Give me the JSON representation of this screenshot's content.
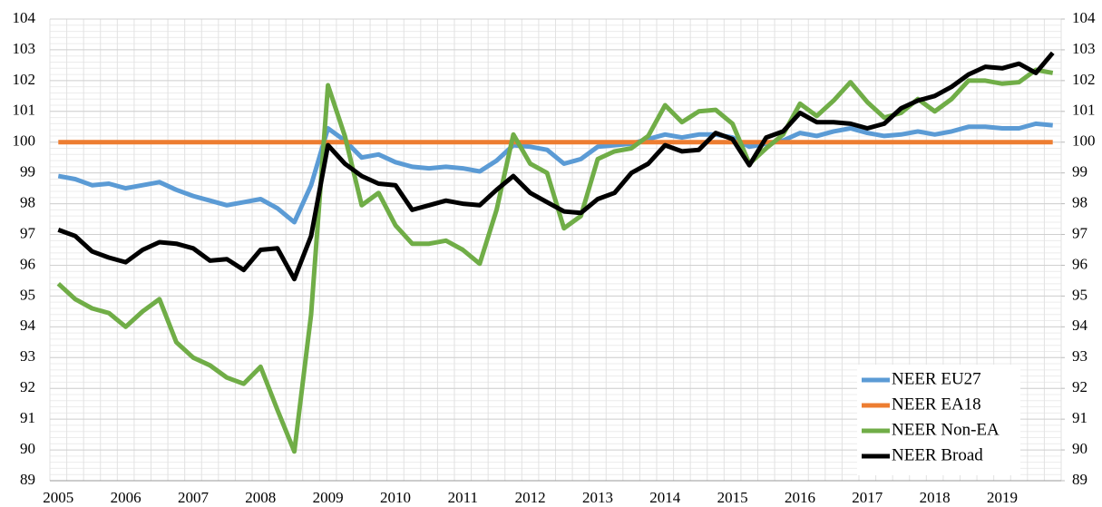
{
  "chart_data": {
    "type": "line",
    "categories": [
      "2005",
      null,
      null,
      null,
      "2006",
      null,
      null,
      null,
      "2007",
      null,
      null,
      null,
      "2008",
      null,
      null,
      null,
      "2009",
      null,
      null,
      null,
      "2010",
      null,
      null,
      null,
      "2011",
      null,
      null,
      null,
      "2012",
      null,
      null,
      null,
      "2013",
      null,
      null,
      null,
      "2014",
      null,
      null,
      null,
      "2015",
      null,
      null,
      null,
      "2016",
      null,
      null,
      null,
      "2017",
      null,
      null,
      null,
      "2018",
      null,
      null,
      null,
      "2019",
      null,
      null,
      null
    ],
    "series": [
      {
        "name": "NEER EU27",
        "color": "#5b9bd5",
        "values": [
          98.9,
          98.8,
          98.6,
          98.65,
          98.5,
          98.6,
          98.7,
          98.45,
          98.25,
          98.1,
          97.95,
          98.05,
          98.15,
          97.85,
          97.4,
          98.6,
          100.45,
          100.05,
          99.5,
          99.6,
          99.35,
          99.2,
          99.15,
          99.2,
          99.15,
          99.05,
          99.4,
          99.9,
          99.85,
          99.75,
          99.3,
          99.45,
          99.85,
          99.9,
          99.95,
          100.1,
          100.25,
          100.15,
          100.25,
          100.25,
          100.15,
          99.85,
          99.95,
          100.05,
          100.3,
          100.2,
          100.35,
          100.45,
          100.3,
          100.2,
          100.25,
          100.35,
          100.25,
          100.35,
          100.5,
          100.5,
          100.45,
          100.45,
          100.6,
          100.55
        ]
      },
      {
        "name": "NEER EA18",
        "color": "#ed7d31",
        "values": [
          100,
          100,
          100,
          100,
          100,
          100,
          100,
          100,
          100,
          100,
          100,
          100,
          100,
          100,
          100,
          100,
          100,
          100,
          100,
          100,
          100,
          100,
          100,
          100,
          100,
          100,
          100,
          100,
          100,
          100,
          100,
          100,
          100,
          100,
          100,
          100,
          100,
          100,
          100,
          100,
          100,
          100,
          100,
          100,
          100,
          100,
          100,
          100,
          100,
          100,
          100,
          100,
          100,
          100,
          100,
          100,
          100,
          100,
          100,
          100
        ]
      },
      {
        "name": "NEER Non-EA",
        "color": "#70ad47",
        "values": [
          95.4,
          94.9,
          94.6,
          94.45,
          94.0,
          94.5,
          94.9,
          93.5,
          93.0,
          92.75,
          92.35,
          92.15,
          92.7,
          91.3,
          89.95,
          94.4,
          101.85,
          100.2,
          97.95,
          98.35,
          97.3,
          96.7,
          96.7,
          96.8,
          96.5,
          96.05,
          97.8,
          100.25,
          99.3,
          99.0,
          97.2,
          97.6,
          99.45,
          99.7,
          99.8,
          100.2,
          101.2,
          100.65,
          101.0,
          101.05,
          100.6,
          99.3,
          99.8,
          100.25,
          101.25,
          100.85,
          101.35,
          101.95,
          101.3,
          100.8,
          100.95,
          101.4,
          101.0,
          101.4,
          102.0,
          102.0,
          101.9,
          101.95,
          102.35,
          102.25
        ]
      },
      {
        "name": "NEER Broad",
        "color": "#000000",
        "values": [
          97.15,
          96.95,
          96.45,
          96.25,
          96.1,
          96.5,
          96.75,
          96.7,
          96.55,
          96.15,
          96.2,
          95.85,
          96.5,
          96.55,
          95.55,
          96.95,
          99.9,
          99.3,
          98.9,
          98.65,
          98.6,
          97.8,
          97.95,
          98.1,
          98.0,
          97.95,
          98.45,
          98.9,
          98.35,
          98.05,
          97.75,
          97.7,
          98.15,
          98.35,
          99.0,
          99.3,
          99.9,
          99.7,
          99.75,
          100.3,
          100.1,
          99.25,
          100.15,
          100.35,
          100.95,
          100.65,
          100.65,
          100.6,
          100.45,
          100.6,
          101.1,
          101.35,
          101.5,
          101.8,
          102.2,
          102.45,
          102.4,
          102.55,
          102.25,
          102.9
        ]
      }
    ],
    "ylim": [
      89,
      104
    ],
    "yticks": [
      89,
      90,
      91,
      92,
      93,
      94,
      95,
      96,
      97,
      98,
      99,
      100,
      101,
      102,
      103,
      104
    ],
    "y2lim": [
      89,
      104
    ],
    "y2ticks": [
      89,
      90,
      91,
      92,
      93,
      94,
      95,
      96,
      97,
      98,
      99,
      100,
      101,
      102,
      103,
      104
    ],
    "grid": true,
    "legend": "lower right"
  }
}
